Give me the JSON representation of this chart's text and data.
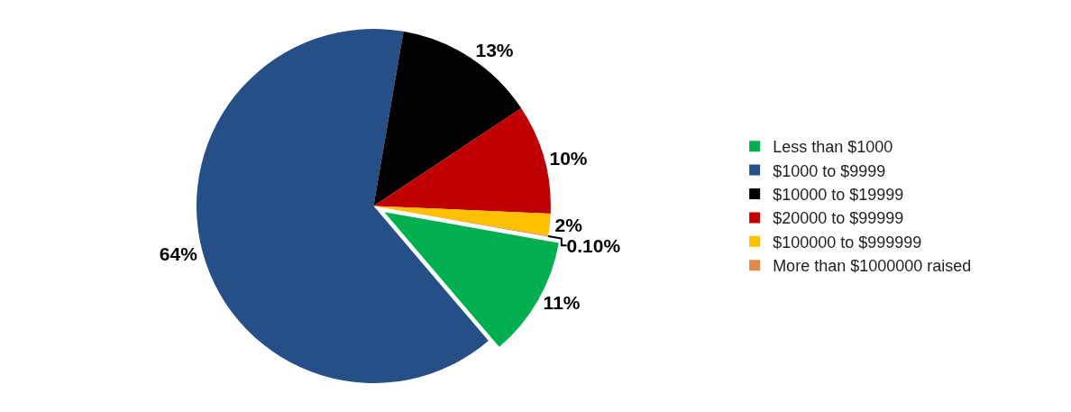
{
  "chart_data": {
    "type": "pie",
    "categories": [
      "Less than $1000",
      "$1000 to $9999",
      "$10000 to $19999",
      "$20000 to $99999",
      "$100000 to $999999",
      "More than $1000000 raised"
    ],
    "values": [
      11,
      64,
      13,
      10,
      2,
      0.1
    ],
    "colors": [
      "#00b050",
      "#254f86",
      "#000000",
      "#c00000",
      "#ffc000",
      "#e0894a"
    ],
    "value_labels": [
      "11%",
      "64%",
      "13%",
      "10%",
      "2%",
      "0.10%"
    ],
    "legend": "right"
  }
}
